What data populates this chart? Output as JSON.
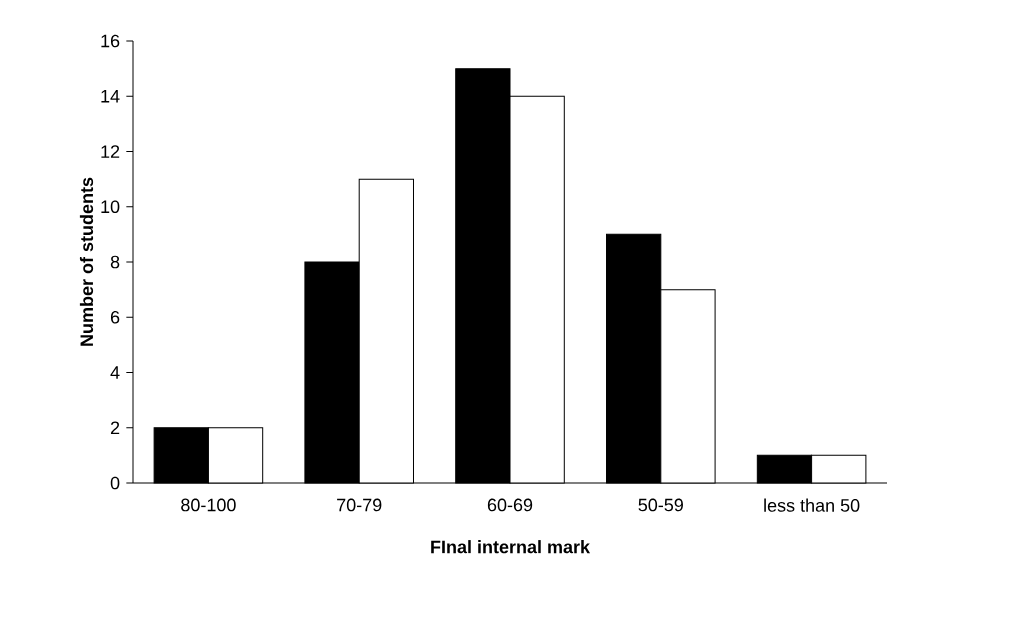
{
  "chart_data": {
    "type": "bar",
    "xlabel": "FInal internal mark",
    "ylabel": "Number of students",
    "categories": [
      "80-100",
      "70-79",
      "60-69",
      "50-59",
      "less than 50"
    ],
    "series": [
      {
        "color": "#000000",
        "values": [
          2,
          8,
          15,
          9,
          1
        ]
      },
      {
        "color": "#ffffff",
        "values": [
          2,
          11,
          14,
          7,
          1
        ]
      }
    ],
    "ylim": [
      0,
      16
    ],
    "yticks": [
      0,
      2,
      4,
      6,
      8,
      10,
      12,
      14,
      16
    ],
    "grid": false
  }
}
